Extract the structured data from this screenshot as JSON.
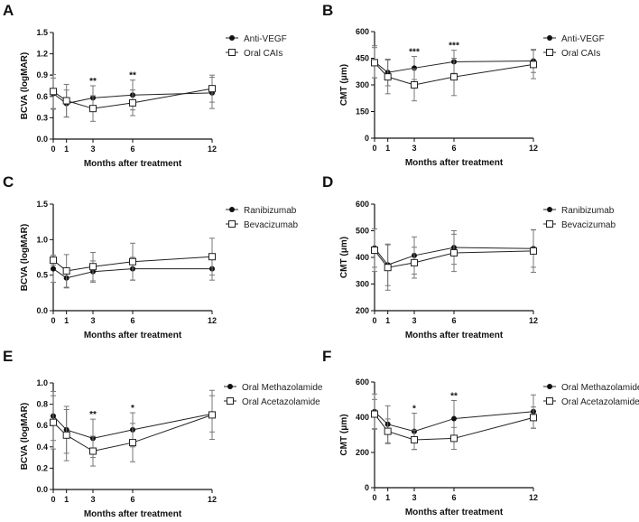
{
  "chart_data": [
    {
      "panel": "A",
      "type": "line",
      "xlabel": "Months after treatment",
      "ylabel": "BCVA (logMAR)",
      "x": [
        0,
        1,
        3,
        6,
        12
      ],
      "ylim": [
        0,
        1.5
      ],
      "yticks": [
        0.0,
        0.3,
        0.6,
        0.9,
        1.2,
        1.5
      ],
      "ytick_labels": [
        "0.0",
        "0.3",
        "0.6",
        "0.9",
        "1.2",
        "1.5"
      ],
      "series": [
        {
          "name": "Anti-VEGF",
          "marker": "filled-circle",
          "values": [
            0.64,
            0.5,
            0.58,
            0.62,
            0.65
          ],
          "error": [
            0.22,
            0.19,
            0.17,
            0.21,
            0.22
          ]
        },
        {
          "name": "Oral CAIs",
          "marker": "open-square",
          "values": [
            0.67,
            0.54,
            0.43,
            0.51,
            0.71
          ],
          "error": [
            0.24,
            0.23,
            0.18,
            0.18,
            0.19
          ]
        }
      ],
      "annotations": [
        {
          "x": 3,
          "text": "**"
        },
        {
          "x": 6,
          "text": "**"
        }
      ],
      "legend": "top-right"
    },
    {
      "panel": "B",
      "type": "line",
      "xlabel": "Months after treatment",
      "ylabel": "CMT (μm)",
      "x": [
        0,
        1,
        3,
        6,
        12
      ],
      "ylim": [
        0,
        600
      ],
      "yticks": [
        0,
        150,
        300,
        450,
        600
      ],
      "ytick_labels": [
        "0",
        "150",
        "300",
        "450",
        "600"
      ],
      "series": [
        {
          "name": "Anti-VEGF",
          "marker": "filled-circle",
          "values": [
            430,
            370,
            395,
            430,
            435
          ],
          "error": [
            90,
            75,
            65,
            65,
            65
          ]
        },
        {
          "name": "Oral CAIs",
          "marker": "open-square",
          "values": [
            425,
            345,
            300,
            345,
            415
          ],
          "error": [
            85,
            95,
            90,
            105,
            80
          ]
        }
      ],
      "annotations": [
        {
          "x": 3,
          "text": "***"
        },
        {
          "x": 6,
          "text": "***"
        }
      ],
      "legend": "top-right"
    },
    {
      "panel": "C",
      "type": "line",
      "xlabel": "Months after treatment",
      "ylabel": "BCVA (logMAR)",
      "x": [
        0,
        1,
        3,
        6,
        12
      ],
      "ylim": [
        0,
        1.5
      ],
      "yticks": [
        0.0,
        0.5,
        1.0,
        1.5
      ],
      "ytick_labels": [
        "0.0",
        "0.5",
        "1.0",
        "1.5"
      ],
      "series": [
        {
          "name": "Ranibizumab",
          "marker": "filled-circle",
          "values": [
            0.59,
            0.46,
            0.55,
            0.59,
            0.59
          ],
          "error": [
            0.19,
            0.14,
            0.15,
            0.16,
            0.16
          ]
        },
        {
          "name": "Bevacizumab",
          "marker": "open-square",
          "values": [
            0.71,
            0.56,
            0.62,
            0.69,
            0.76
          ],
          "error": [
            0.07,
            0.23,
            0.2,
            0.26,
            0.26
          ]
        }
      ],
      "annotations": [],
      "legend": "top-right"
    },
    {
      "panel": "D",
      "type": "line",
      "xlabel": "Months after treatment",
      "ylabel": "CMT (μm)",
      "x": [
        0,
        1,
        3,
        6,
        12
      ],
      "ylim": [
        200,
        600
      ],
      "yticks": [
        200,
        300,
        400,
        500,
        600
      ],
      "ytick_labels": [
        "200",
        "300",
        "400",
        "500",
        "600"
      ],
      "series": [
        {
          "name": "Ranibizumab",
          "marker": "filled-circle",
          "values": [
            435,
            372,
            407,
            437,
            433
          ],
          "error": [
            72,
            78,
            70,
            63,
            70
          ]
        },
        {
          "name": "Bevacizumab",
          "marker": "open-square",
          "values": [
            427,
            362,
            380,
            417,
            424
          ],
          "error": [
            80,
            85,
            58,
            70,
            80
          ]
        }
      ],
      "annotations": [],
      "legend": "top-right"
    },
    {
      "panel": "E",
      "type": "line",
      "xlabel": "Months after treatment",
      "ylabel": "BCVA (logMAR)",
      "x": [
        0,
        1,
        3,
        6,
        12
      ],
      "ylim": [
        0,
        1.0
      ],
      "yticks": [
        0.0,
        0.2,
        0.4,
        0.6,
        0.8,
        1.0
      ],
      "ytick_labels": [
        "0.0",
        "0.2",
        "0.4",
        "0.6",
        "0.8",
        "1.0"
      ],
      "series": [
        {
          "name": "Oral Methazolamide",
          "marker": "filled-circle",
          "values": [
            0.69,
            0.56,
            0.48,
            0.56,
            0.71
          ],
          "error": [
            0.23,
            0.22,
            0.18,
            0.16,
            0.17
          ]
        },
        {
          "name": "Oral Acetazolamide",
          "marker": "open-square",
          "values": [
            0.63,
            0.51,
            0.36,
            0.44,
            0.7
          ],
          "error": [
            0.25,
            0.24,
            0.14,
            0.18,
            0.23
          ]
        }
      ],
      "annotations": [
        {
          "x": 3,
          "text": "**"
        },
        {
          "x": 6,
          "text": "*"
        }
      ],
      "legend": "top-right"
    },
    {
      "panel": "F",
      "type": "line",
      "xlabel": "Months after treatment",
      "ylabel": "CMT (μm)",
      "x": [
        0,
        1,
        3,
        6,
        12
      ],
      "ylim": [
        0,
        600
      ],
      "yticks": [
        0,
        200,
        400,
        600
      ],
      "ytick_labels": [
        "0",
        "200",
        "400",
        "600"
      ],
      "series": [
        {
          "name": "Oral Methazolamide",
          "marker": "filled-circle",
          "values": [
            432,
            360,
            320,
            392,
            432
          ],
          "error": [
            100,
            105,
            103,
            103,
            95
          ]
        },
        {
          "name": "Oral Acetazolamide",
          "marker": "open-square",
          "values": [
            418,
            320,
            272,
            280,
            398
          ],
          "error": [
            83,
            70,
            55,
            62,
            60
          ]
        }
      ],
      "annotations": [
        {
          "x": 3,
          "text": "*"
        },
        {
          "x": 6,
          "text": "**"
        }
      ],
      "legend": "top-right"
    }
  ],
  "colors": {
    "line": "#222222",
    "error_bar": "#777777"
  }
}
